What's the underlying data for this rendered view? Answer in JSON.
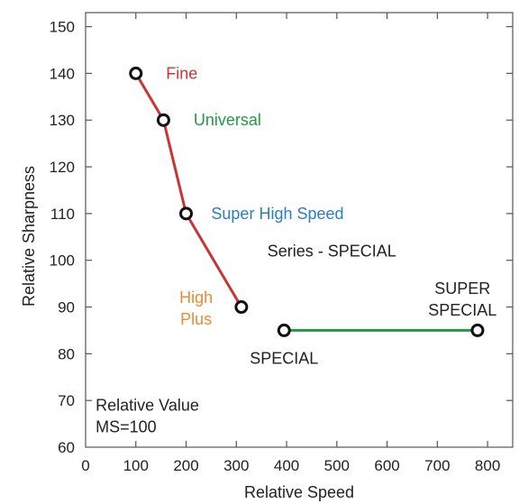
{
  "chart_data": {
    "type": "line",
    "title": "",
    "xlabel": "Relative Speed",
    "ylabel": "Relative Sharpness",
    "xlim": [
      0,
      850
    ],
    "ylim": [
      60,
      153
    ],
    "x_ticks": [
      "0",
      "100",
      "200",
      "300",
      "400",
      "500",
      "600",
      "700",
      "800"
    ],
    "y_ticks": [
      "60",
      "70",
      "80",
      "90",
      "100",
      "110",
      "120",
      "130",
      "140",
      "150"
    ],
    "grid": false,
    "series": [
      {
        "color": "#cc3333",
        "points": [
          {
            "x": 100,
            "y": 140
          },
          {
            "x": 155,
            "y": 130
          },
          {
            "x": 200,
            "y": 110
          },
          {
            "x": 310,
            "y": 90
          }
        ]
      },
      {
        "color": "#229944",
        "points": [
          {
            "x": 395,
            "y": 85
          },
          {
            "x": 780,
            "y": 85
          }
        ]
      }
    ],
    "annotations": [
      {
        "lines": [
          "Fine"
        ],
        "x": 160,
        "y": 140,
        "color": "#cc3333",
        "anchor": "start"
      },
      {
        "lines": [
          "Universal"
        ],
        "x": 215,
        "y": 130,
        "color": "#229944",
        "anchor": "start"
      },
      {
        "lines": [
          "Super High Speed"
        ],
        "x": 250,
        "y": 110,
        "color": "#2a7dc4",
        "anchor": "start"
      },
      {
        "lines": [
          "Series - SPECIAL"
        ],
        "x": 490,
        "y": 102,
        "color": "#222222",
        "anchor": "middle"
      },
      {
        "lines": [
          "High",
          "Plus"
        ],
        "x": 220,
        "y": 92,
        "color": "#ee8833",
        "anchor": "middle"
      },
      {
        "lines": [
          "SUPER",
          "SPECIAL"
        ],
        "x": 750,
        "y": 94,
        "color": "#222222",
        "anchor": "middle"
      },
      {
        "lines": [
          "SPECIAL"
        ],
        "x": 395,
        "y": 79,
        "color": "#222222",
        "anchor": "middle"
      },
      {
        "lines": [
          "Relative Value",
          "MS=100"
        ],
        "x": 20,
        "y": 69,
        "color": "#222222",
        "anchor": "start"
      }
    ]
  }
}
